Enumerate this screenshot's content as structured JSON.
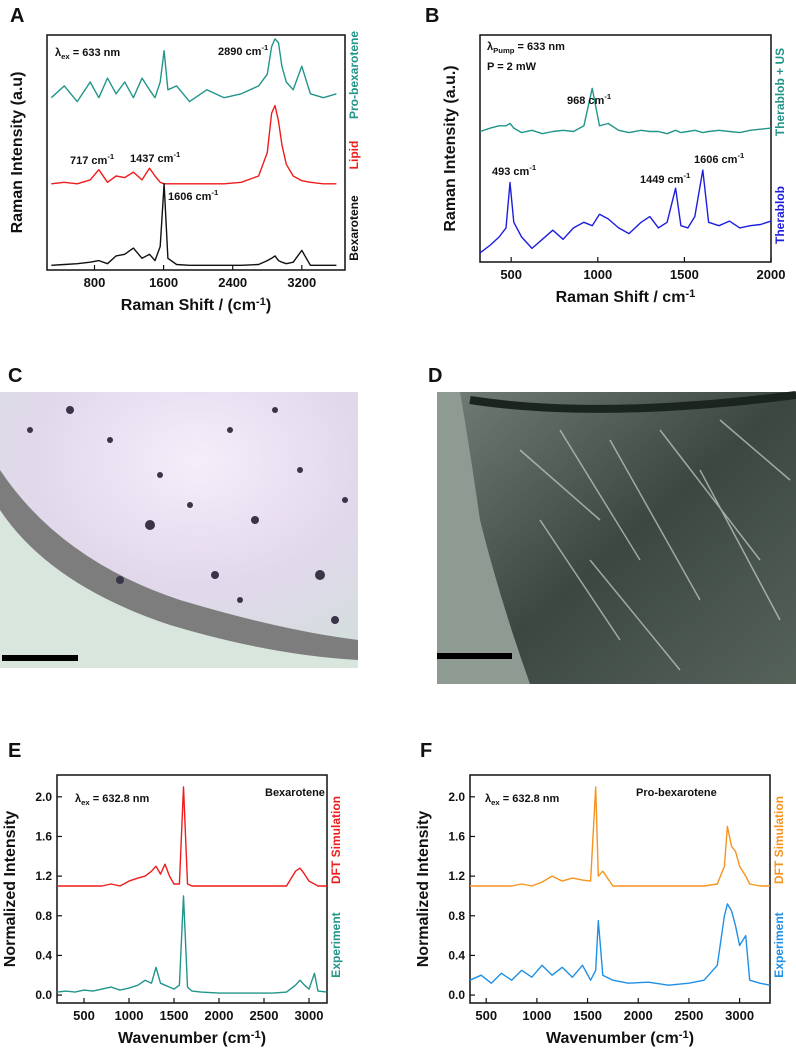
{
  "chart_data": [
    {
      "type": "line",
      "label": "A",
      "xlabel": {
        "pre": "Raman Shift / (cm",
        "sup": "-1",
        "post": ")"
      },
      "ylabel": {
        "pre": "Raman Intensity (a.u)"
      },
      "xlim": [
        250,
        3700
      ],
      "xticks": [
        800,
        1600,
        2400,
        3200
      ],
      "ylim": [
        0,
        3
      ],
      "annotations": [
        {
          "pre": "λ",
          "sub": "ex",
          "post": " = 633 nm"
        },
        {
          "pre": "2890 cm",
          "sup": "-1"
        },
        {
          "pre": "717 cm",
          "sup": "-1"
        },
        {
          "pre": "1437 cm",
          "sup": "-1"
        },
        {
          "pre": "1606 cm",
          "sup": "-1"
        }
      ],
      "x": [
        300,
        450,
        600,
        750,
        850,
        950,
        1050,
        1150,
        1250,
        1350,
        1437,
        1500,
        1560,
        1606,
        1650,
        1750,
        1900,
        2100,
        2300,
        2500,
        2700,
        2800,
        2850,
        2890,
        2930,
        2970,
        3020,
        3100,
        3200,
        3300,
        3450,
        3600
      ],
      "series": [
        {
          "name": "Pro-bexarotene",
          "color": "#21958a",
          "values": [
            2.2,
            2.35,
            2.15,
            2.4,
            2.2,
            2.45,
            2.25,
            2.4,
            2.2,
            2.45,
            2.3,
            2.2,
            2.4,
            2.8,
            2.3,
            2.35,
            2.15,
            2.3,
            2.2,
            2.25,
            2.35,
            2.5,
            2.85,
            2.95,
            2.9,
            2.6,
            2.4,
            2.3,
            2.6,
            2.25,
            2.2,
            2.25
          ]
        },
        {
          "name": "Lipid",
          "color": "#ee1c1c",
          "values": [
            1.1,
            1.12,
            1.1,
            1.15,
            1.28,
            1.12,
            1.2,
            1.18,
            1.25,
            1.15,
            1.3,
            1.2,
            1.12,
            1.1,
            1.1,
            1.1,
            1.1,
            1.1,
            1.1,
            1.12,
            1.2,
            1.5,
            2.0,
            2.1,
            1.9,
            1.6,
            1.35,
            1.2,
            1.14,
            1.12,
            1.1,
            1.1
          ]
        },
        {
          "name": "Bexarotene",
          "color": "#111111",
          "values": [
            0.06,
            0.07,
            0.08,
            0.1,
            0.12,
            0.08,
            0.18,
            0.2,
            0.28,
            0.15,
            0.2,
            0.12,
            0.3,
            1.1,
            0.15,
            0.07,
            0.06,
            0.06,
            0.06,
            0.06,
            0.07,
            0.12,
            0.15,
            0.18,
            0.12,
            0.1,
            0.08,
            0.1,
            0.25,
            0.06,
            0.06,
            0.06
          ]
        }
      ]
    },
    {
      "type": "line",
      "label": "B",
      "xlabel": {
        "pre": "Raman Shift / cm",
        "sup": "-1"
      },
      "ylabel": {
        "pre": "Raman Intensity (a.u.)"
      },
      "xlim": [
        320,
        2000
      ],
      "xticks": [
        500,
        1000,
        1500,
        2000
      ],
      "ylim": [
        0,
        2
      ],
      "annotations": [
        {
          "pre": "λ",
          "sub": "Pump",
          "post": " = 633 nm"
        },
        {
          "pre": "P = 2 mW"
        },
        {
          "pre": "968 cm",
          "sup": "-1"
        },
        {
          "pre": "493 cm",
          "sup": "-1"
        },
        {
          "pre": "1449 cm",
          "sup": "-1"
        },
        {
          "pre": "1606 cm",
          "sup": "-1"
        }
      ],
      "x": [
        320,
        380,
        430,
        470,
        493,
        515,
        560,
        620,
        680,
        740,
        800,
        860,
        920,
        968,
        1010,
        1060,
        1120,
        1180,
        1250,
        1300,
        1350,
        1400,
        1449,
        1480,
        1520,
        1560,
        1606,
        1640,
        1700,
        1760,
        1820,
        1880,
        1940,
        2000
      ],
      "series": [
        {
          "name": "Therablob + US",
          "color": "#21958a",
          "values": [
            1.15,
            1.18,
            1.2,
            1.2,
            1.22,
            1.18,
            1.14,
            1.16,
            1.13,
            1.15,
            1.16,
            1.15,
            1.2,
            1.53,
            1.2,
            1.22,
            1.16,
            1.14,
            1.16,
            1.15,
            1.15,
            1.13,
            1.16,
            1.14,
            1.15,
            1.16,
            1.14,
            1.15,
            1.16,
            1.15,
            1.14,
            1.16,
            1.17,
            1.18
          ]
        },
        {
          "name": "Therablob",
          "color": "#1d1de0",
          "values": [
            0.08,
            0.15,
            0.22,
            0.3,
            0.7,
            0.35,
            0.22,
            0.12,
            0.2,
            0.28,
            0.2,
            0.3,
            0.35,
            0.32,
            0.42,
            0.38,
            0.3,
            0.25,
            0.35,
            0.4,
            0.3,
            0.35,
            0.65,
            0.32,
            0.3,
            0.4,
            0.81,
            0.35,
            0.32,
            0.36,
            0.3,
            0.32,
            0.33,
            0.36
          ]
        }
      ]
    },
    {
      "type": "line",
      "label": "E",
      "xlabel": {
        "pre": "Wavenumber (cm",
        "sup": "-1",
        "post": ")"
      },
      "ylabel": {
        "pre": "Normalized Intensity"
      },
      "xlim": [
        200,
        3200
      ],
      "xticks": [
        500,
        1000,
        1500,
        2000,
        2500,
        3000
      ],
      "ylim": [
        -0.08,
        2.22
      ],
      "yticks": [
        {
          "value": 0,
          "label": "0.0"
        },
        {
          "value": 0.4,
          "label": "0.4"
        },
        {
          "value": 0.8,
          "label": "0.8"
        },
        {
          "value": 1.2,
          "label": "1.2"
        },
        {
          "value": 1.6,
          "label": "1.6"
        },
        {
          "value": 2,
          "label": "2.0"
        }
      ],
      "annotations": [
        {
          "pre": "λ",
          "sub": "ex",
          "post": " = 632.8 nm"
        },
        {
          "pre": "Bexarotene"
        }
      ],
      "x": [
        200,
        300,
        400,
        500,
        600,
        700,
        800,
        900,
        1000,
        1100,
        1180,
        1250,
        1300,
        1350,
        1400,
        1450,
        1500,
        1560,
        1606,
        1650,
        1700,
        1800,
        2000,
        2200,
        2400,
        2600,
        2750,
        2850,
        2900,
        2950,
        3000,
        3060,
        3100,
        3200
      ],
      "series": [
        {
          "name": "DFT Simulation",
          "color": "#ee1c1c",
          "values": [
            1.1,
            1.1,
            1.1,
            1.1,
            1.1,
            1.1,
            1.12,
            1.1,
            1.15,
            1.18,
            1.2,
            1.25,
            1.3,
            1.22,
            1.32,
            1.2,
            1.12,
            1.12,
            2.1,
            1.12,
            1.1,
            1.1,
            1.1,
            1.1,
            1.1,
            1.1,
            1.1,
            1.25,
            1.28,
            1.22,
            1.15,
            1.12,
            1.1,
            1.1
          ]
        },
        {
          "name": "Experiment",
          "color": "#21958a",
          "values": [
            0.03,
            0.04,
            0.03,
            0.05,
            0.04,
            0.06,
            0.08,
            0.05,
            0.07,
            0.1,
            0.15,
            0.12,
            0.28,
            0.12,
            0.1,
            0.08,
            0.06,
            0.1,
            1.0,
            0.08,
            0.04,
            0.03,
            0.02,
            0.02,
            0.02,
            0.02,
            0.03,
            0.1,
            0.15,
            0.1,
            0.06,
            0.22,
            0.04,
            0.03
          ]
        }
      ]
    },
    {
      "type": "line",
      "label": "F",
      "xlabel": {
        "pre": "Wavenumber (cm",
        "sup": "-1",
        "post": ")"
      },
      "ylabel": {
        "pre": "Normalized Intensity"
      },
      "xlim": [
        340,
        3300
      ],
      "xticks": [
        500,
        1000,
        1500,
        2000,
        2500,
        3000
      ],
      "ylim": [
        -0.08,
        2.22
      ],
      "yticks": [
        {
          "value": 0,
          "label": "0.0"
        },
        {
          "value": 0.4,
          "label": "0.4"
        },
        {
          "value": 0.8,
          "label": "0.8"
        },
        {
          "value": 1.2,
          "label": "1.2"
        },
        {
          "value": 1.6,
          "label": "1.6"
        },
        {
          "value": 2,
          "label": "2.0"
        }
      ],
      "annotations": [
        {
          "pre": "λ",
          "sub": "ex",
          "post": " = 632.8 nm"
        },
        {
          "pre": "Pro-bexarotene"
        }
      ],
      "x": [
        340,
        450,
        550,
        650,
        750,
        850,
        950,
        1050,
        1150,
        1250,
        1350,
        1450,
        1530,
        1580,
        1606,
        1650,
        1750,
        1900,
        2100,
        2300,
        2500,
        2650,
        2780,
        2850,
        2880,
        2920,
        2960,
        3000,
        3060,
        3100,
        3200,
        3300
      ],
      "series": [
        {
          "name": "DFT Simulation",
          "color": "#f7941d",
          "values": [
            1.1,
            1.1,
            1.1,
            1.1,
            1.1,
            1.12,
            1.1,
            1.14,
            1.2,
            1.15,
            1.18,
            1.16,
            1.15,
            2.1,
            1.2,
            1.25,
            1.1,
            1.1,
            1.1,
            1.1,
            1.1,
            1.1,
            1.12,
            1.3,
            1.7,
            1.5,
            1.45,
            1.3,
            1.2,
            1.12,
            1.1,
            1.1
          ]
        },
        {
          "name": "Experiment",
          "color": "#1e90e6",
          "values": [
            0.15,
            0.2,
            0.12,
            0.22,
            0.15,
            0.25,
            0.18,
            0.3,
            0.2,
            0.28,
            0.18,
            0.3,
            0.15,
            0.25,
            0.75,
            0.2,
            0.15,
            0.12,
            0.13,
            0.1,
            0.12,
            0.15,
            0.3,
            0.8,
            0.92,
            0.85,
            0.7,
            0.5,
            0.6,
            0.15,
            0.12,
            0.1
          ]
        }
      ]
    }
  ],
  "images": [
    {
      "label": "C"
    },
    {
      "label": "D"
    }
  ]
}
